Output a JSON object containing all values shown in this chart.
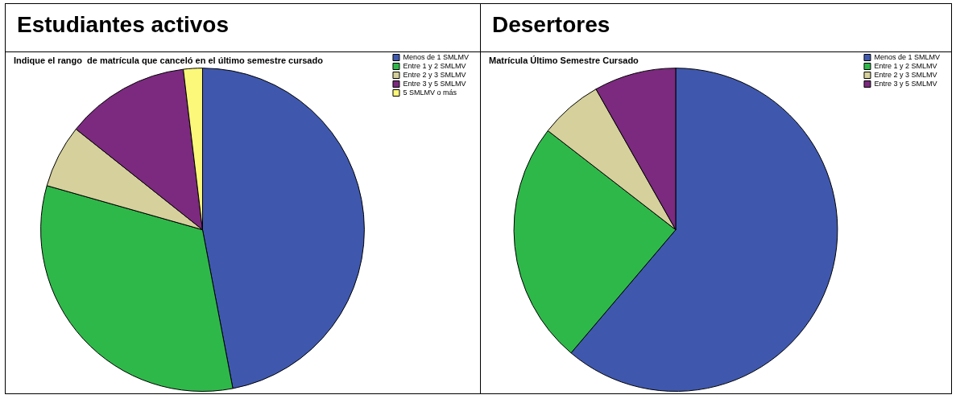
{
  "chart_data": [
    {
      "type": "pie",
      "title": "Estudiantes activos",
      "subtitle": "Indique el rango  de matrícula que canceló en el último semestre cursado",
      "categories": [
        "Menos de 1 SMLMV",
        "Entre 1 y 2 SMLMV",
        "Entre 2 y 3 SMLMV",
        "Entre 3 y 5 SMLMV",
        "5 SMLMV o más"
      ],
      "values": [
        47,
        32.4,
        6.3,
        12.4,
        1.9
      ],
      "colors": [
        "#3f58ae",
        "#2fb84a",
        "#d5d09c",
        "#7b2a7f",
        "#fbf87a"
      ],
      "legend": "top right"
    },
    {
      "type": "pie",
      "title": "Desertores",
      "subtitle": "Matrícula Último Semestre Cursado",
      "categories": [
        "Menos de 1 SMLMV",
        "Entre 1 y 2 SMLMV",
        "Entre 2 y 3 SMLMV",
        "Entre 3 y 5 SMLMV"
      ],
      "values": [
        61.2,
        24.3,
        6.3,
        8.2
      ],
      "colors": [
        "#3f58ae",
        "#2fb84a",
        "#d5d09c",
        "#7b2a7f"
      ],
      "legend": "top right"
    }
  ]
}
